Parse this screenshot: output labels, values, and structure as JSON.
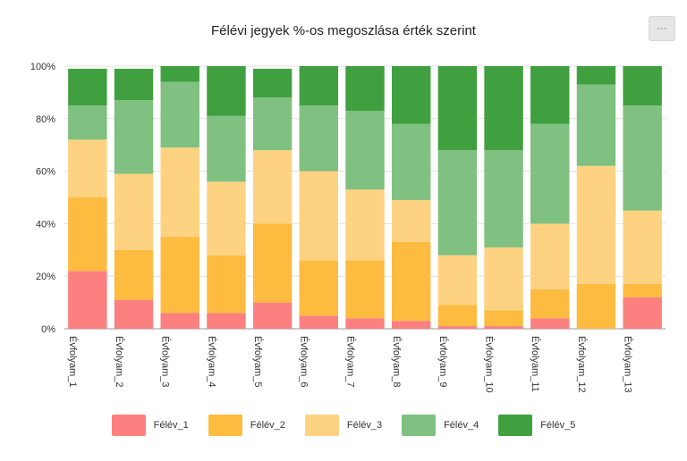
{
  "title": "Félévi jegyek %-os megoszlása érték szerint",
  "menu_label": "···",
  "chart_data": {
    "type": "bar",
    "stacked": true,
    "title": "Félévi jegyek %-os megoszlása érték szerint",
    "xlabel": "",
    "ylabel": "",
    "ylim": [
      0,
      100
    ],
    "y_ticks": [
      "0%",
      "20%",
      "40%",
      "60%",
      "80%",
      "100%"
    ],
    "grid": true,
    "legend_position": "bottom",
    "categories": [
      "Évfolyam_1",
      "Évfolyam_2",
      "Évfolyam_3",
      "Évfolyam_4",
      "Évfolyam_5",
      "Évfolyam_6",
      "Évfolyam_7",
      "Évfolyam_8",
      "Évfolyam_9",
      "Évfolyam_10",
      "Évfolyam_11",
      "Évfolyam_12",
      "Évfolyam_13"
    ],
    "series": [
      {
        "name": "Félév_1",
        "color": "#fd8080",
        "values": [
          22,
          11,
          6,
          6,
          10,
          5,
          4,
          3,
          1,
          1,
          4,
          0,
          12
        ]
      },
      {
        "name": "Félév_2",
        "color": "#fdbb40",
        "values": [
          28,
          19,
          29,
          22,
          30,
          21,
          22,
          30,
          8,
          6,
          11,
          17,
          5
        ]
      },
      {
        "name": "Félév_3",
        "color": "#fdd381",
        "values": [
          22,
          29,
          34,
          28,
          28,
          34,
          27,
          16,
          19,
          24,
          25,
          45,
          28
        ]
      },
      {
        "name": "Félév_4",
        "color": "#80c080",
        "values": [
          13,
          28,
          25,
          25,
          20,
          25,
          30,
          29,
          40,
          37,
          38,
          31,
          40
        ]
      },
      {
        "name": "Félév_5",
        "color": "#40a040",
        "values": [
          14,
          12,
          6,
          19,
          11,
          15,
          17,
          22,
          32,
          32,
          22,
          7,
          15
        ]
      }
    ]
  }
}
